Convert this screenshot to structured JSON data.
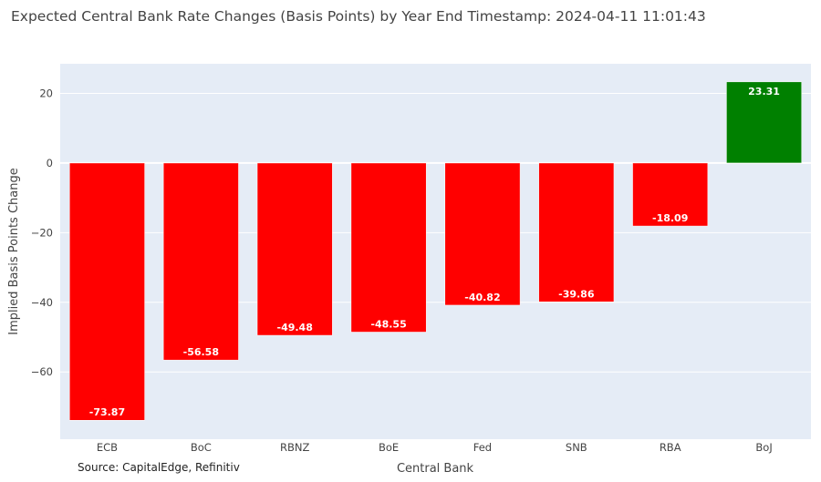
{
  "chart_data": {
    "type": "bar",
    "title": "Expected Central Bank Rate Changes (Basis Points) by Year End Timestamp: 2024-04-11 11:01:43",
    "xlabel": "Central Bank",
    "ylabel": "Implied Basis Points Change",
    "categories": [
      "ECB",
      "BoC",
      "RBNZ",
      "BoE",
      "Fed",
      "SNB",
      "RBA",
      "BoJ"
    ],
    "values": [
      -73.87,
      -56.58,
      -49.48,
      -48.55,
      -40.82,
      -39.86,
      -18.09,
      23.31
    ],
    "data_labels": [
      "-73.87",
      "-56.58",
      "-49.48",
      "-48.55",
      "-40.82",
      "-39.86",
      "-18.09",
      "23.31"
    ],
    "ylim": [
      -79.3,
      28.5
    ],
    "yticks": [
      20,
      0,
      -20,
      -40,
      -60
    ],
    "ytick_labels": [
      "20",
      "0",
      "−20",
      "−40",
      "−60"
    ],
    "grid": true,
    "colors": {
      "negative": "#ff0000",
      "positive": "#008000",
      "plot_background": "#e5ecf6",
      "gridline": "#ffffff"
    },
    "annotation": "Source: CapitalEdge, Refinitiv"
  }
}
